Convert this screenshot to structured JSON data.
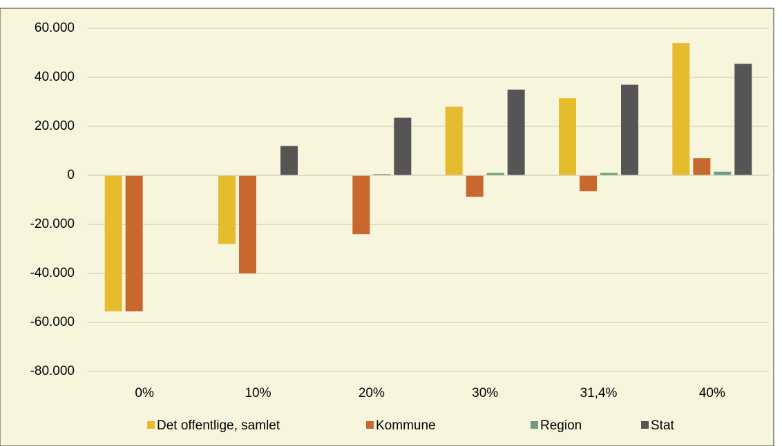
{
  "chart_data": {
    "type": "bar",
    "categories": [
      "0%",
      "10%",
      "20%",
      "30%",
      "31,4%",
      "40%"
    ],
    "series": [
      {
        "name": "Det offentlige, samlet",
        "color": "#e6bc2f",
        "values": [
          -55500,
          -28000,
          0,
          28000,
          31500,
          54000
        ]
      },
      {
        "name": "Kommune",
        "color": "#c8682e",
        "values": [
          -55500,
          -40000,
          -24000,
          -8700,
          -6500,
          7000
        ]
      },
      {
        "name": "Region",
        "color": "#6f9b87",
        "values": [
          0,
          0,
          500,
          1000,
          1000,
          1500
        ]
      },
      {
        "name": "Stat",
        "color": "#555555",
        "values": [
          0,
          12000,
          23500,
          35000,
          37000,
          45500
        ]
      }
    ],
    "ylim": [
      -80000,
      60000
    ],
    "yticks": [
      {
        "value": -80000,
        "label": "-80.000"
      },
      {
        "value": -60000,
        "label": "-60.000"
      },
      {
        "value": -40000,
        "label": "-40.000"
      },
      {
        "value": -20000,
        "label": "-20.000"
      },
      0,
      {
        "value": 20000,
        "label": "20.000"
      },
      {
        "value": 40000,
        "label": "40.000"
      },
      {
        "value": 60000,
        "label": "60.000"
      }
    ],
    "grid": true,
    "legend": "bottom"
  }
}
